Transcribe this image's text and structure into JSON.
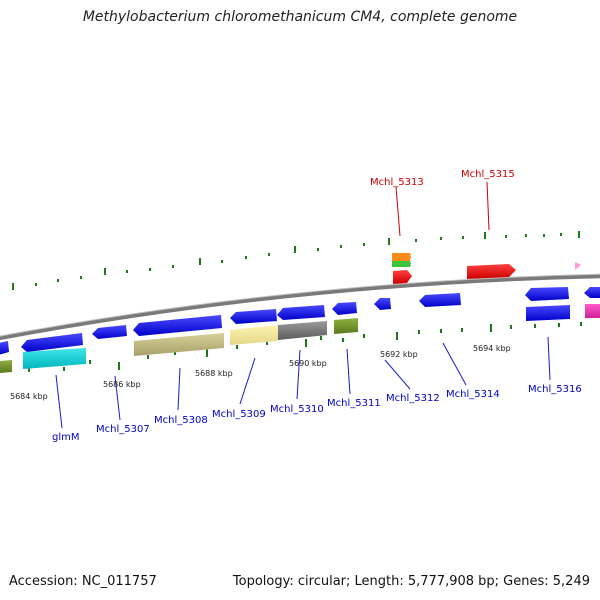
{
  "title": "Methylobacterium chloromethanicum CM4, complete genome",
  "footer": {
    "accession": "Accession: NC_011757",
    "summary": "Topology: circular; Length: 5,777,908 bp; Genes: 5,249"
  },
  "scale_labels": [
    "5684 kbp",
    "5686 kbp",
    "5688 kbp",
    "5690 kbp",
    "5692 kbp",
    "5694 kbp"
  ],
  "gene_labels_forward": [
    "Mchl_5313",
    "Mchl_5315"
  ],
  "gene_labels_reverse": [
    "glmM",
    "Mchl_5307",
    "Mchl_5308",
    "Mchl_5309",
    "Mchl_5310",
    "Mchl_5311",
    "Mchl_5312",
    "Mchl_5314",
    "Mchl_5316"
  ],
  "colors": {
    "forward_label": "#cc0000",
    "reverse_label": "#0000cc",
    "cds_blue": "#1a1aee",
    "tick_green": "#1a7a1a",
    "backbone": "#7a7a7a"
  }
}
